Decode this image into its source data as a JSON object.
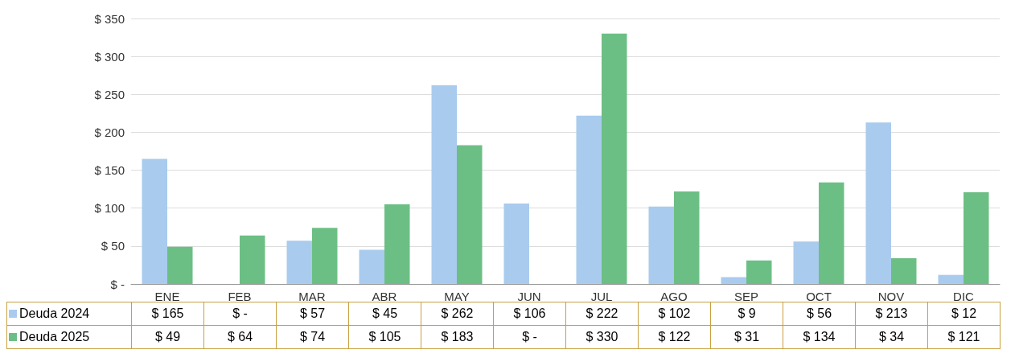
{
  "chart_data": {
    "type": "bar",
    "categories": [
      "ENE",
      "FEB",
      "MAR",
      "ABR",
      "MAY",
      "JUN",
      "JUL",
      "AGO",
      "SEP",
      "OCT",
      "NOV",
      "DIC"
    ],
    "series": [
      {
        "name": "Deuda 2024",
        "color": "#a9cbee",
        "values": [
          165,
          0,
          57,
          45,
          262,
          106,
          222,
          102,
          9,
          56,
          213,
          12
        ],
        "value_labels": [
          "$ 165",
          "$ -",
          "$ 57",
          "$ 45",
          "$ 262",
          "$ 106",
          "$ 222",
          "$ 102",
          "$ 9",
          "$ 56",
          "$ 213",
          "$ 12"
        ]
      },
      {
        "name": "Deuda 2025",
        "color": "#6cbf84",
        "values": [
          49,
          64,
          74,
          105,
          183,
          0,
          330,
          122,
          31,
          134,
          34,
          121
        ],
        "value_labels": [
          "$ 49",
          "$ 64",
          "$ 74",
          "$ 105",
          "$ 183",
          "$ -",
          "$ 330",
          "$ 122",
          "$ 31",
          "$ 134",
          "$ 34",
          "$ 121"
        ]
      }
    ],
    "ylim": [
      0,
      350
    ],
    "yticks": [
      {
        "value": 0,
        "label": "$ -"
      },
      {
        "value": 50,
        "label": "$ 50"
      },
      {
        "value": 100,
        "label": "$ 100"
      },
      {
        "value": 150,
        "label": "$ 150"
      },
      {
        "value": 200,
        "label": "$ 200"
      },
      {
        "value": 250,
        "label": "$ 250"
      },
      {
        "value": 300,
        "label": "$ 300"
      },
      {
        "value": 350,
        "label": "$ 350"
      }
    ],
    "grid": true,
    "legend": "bottom"
  }
}
